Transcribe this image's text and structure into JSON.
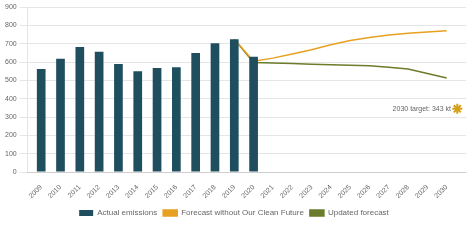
{
  "chart_data": {
    "type": "bar",
    "series": [
      {
        "name": "Actual emissions",
        "type": "bar",
        "color": "#1f4e5f",
        "x": [
          2009,
          2010,
          2011,
          2012,
          2013,
          2014,
          2015,
          2016,
          2017,
          2018,
          2019,
          2020
        ],
        "values": [
          563,
          618,
          683,
          657,
          590,
          550,
          568,
          572,
          650,
          703,
          725,
          630
        ]
      },
      {
        "name": "Forecast without Our Clean Future",
        "type": "line",
        "color": "#e8a020",
        "x": [
          2019,
          2020,
          2021,
          2022,
          2023,
          2024,
          2025,
          2026,
          2027,
          2028,
          2029,
          2030
        ],
        "values": [
          725,
          605,
          622,
          645,
          668,
          695,
          718,
          735,
          748,
          758,
          765,
          772
        ]
      },
      {
        "name": "Updated forecast",
        "type": "line",
        "color": "#6b7c2a",
        "x": [
          2019,
          2020,
          2021,
          2022,
          2023,
          2024,
          2025,
          2026,
          2027,
          2028,
          2029,
          2030
        ],
        "values": [
          725,
          598,
          596,
          592,
          589,
          586,
          583,
          580,
          572,
          562,
          538,
          513
        ]
      }
    ],
    "xlim": [
      2008.3,
      2031.0
    ],
    "xticks": [
      2009,
      2010,
      2011,
      2012,
      2013,
      2014,
      2015,
      2016,
      2017,
      2018,
      2019,
      2020,
      2021,
      2022,
      2023,
      2024,
      2025,
      2026,
      2027,
      2028,
      2029,
      2030
    ],
    "ylim": [
      0,
      900
    ],
    "yticks": [
      0,
      100,
      200,
      300,
      400,
      500,
      600,
      700,
      800,
      900
    ],
    "grid": "y",
    "legend": "bottom",
    "annotations": [
      {
        "text": "2030 target: 343 kt",
        "x": 2027.2,
        "y": 345,
        "color": "#666666"
      }
    ],
    "markers": [
      {
        "x": 2030.55,
        "y": 345,
        "marker": "star",
        "color": "#d4a017"
      }
    ]
  }
}
